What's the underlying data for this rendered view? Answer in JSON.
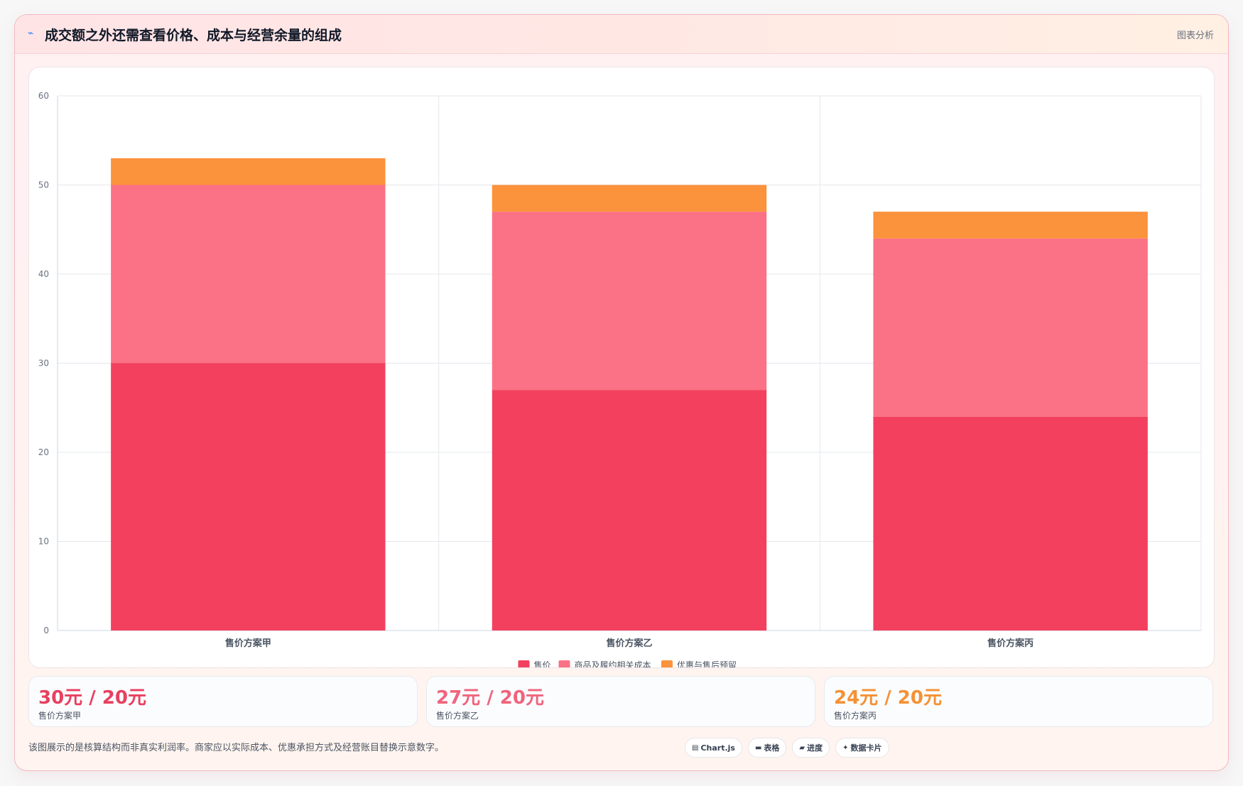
{
  "header": {
    "icon": "chart-line-icon",
    "title": "成交额之外还需查看价格、成本与经营余量的组成",
    "analysis_label": "图表分析"
  },
  "chart_data": {
    "type": "bar",
    "stacked": true,
    "categories": [
      "售价方案甲",
      "售价方案乙",
      "售价方案丙"
    ],
    "series": [
      {
        "name": "售价",
        "values": [
          30,
          27,
          24
        ],
        "color": "#f2405e"
      },
      {
        "name": "商品及履约相关成本",
        "values": [
          20,
          20,
          20
        ],
        "color": "#fb7185"
      },
      {
        "name": "优惠与售后预留",
        "values": [
          3,
          3,
          3
        ],
        "color": "#fb923c"
      }
    ],
    "ylim": [
      0,
      60
    ],
    "yticks": [
      0,
      10,
      20,
      30,
      40,
      50,
      60
    ],
    "grid": true,
    "legend": "bottom"
  },
  "stats": [
    {
      "value": "30元 / 20元",
      "label": "售价方案甲",
      "color": "#e8405f"
    },
    {
      "value": "27元 / 20元",
      "label": "售价方案乙",
      "color": "#f0647d"
    },
    {
      "value": "24元 / 20元",
      "label": "售价方案丙",
      "color": "#f59134"
    }
  ],
  "footer": {
    "note": "该图展示的是核算结构而非真实利润率。商家应以实际成本、优惠承担方式及经营账目替换示意数字。",
    "chips": [
      {
        "icon": "chart-icon",
        "glyph": "▤",
        "label": "Chart.js"
      },
      {
        "icon": "table-icon",
        "glyph": "▬",
        "label": "表格"
      },
      {
        "icon": "progress-icon",
        "glyph": "▰",
        "label": "进度"
      },
      {
        "icon": "sparkle-icon",
        "glyph": "✦",
        "label": "数据卡片"
      }
    ]
  }
}
